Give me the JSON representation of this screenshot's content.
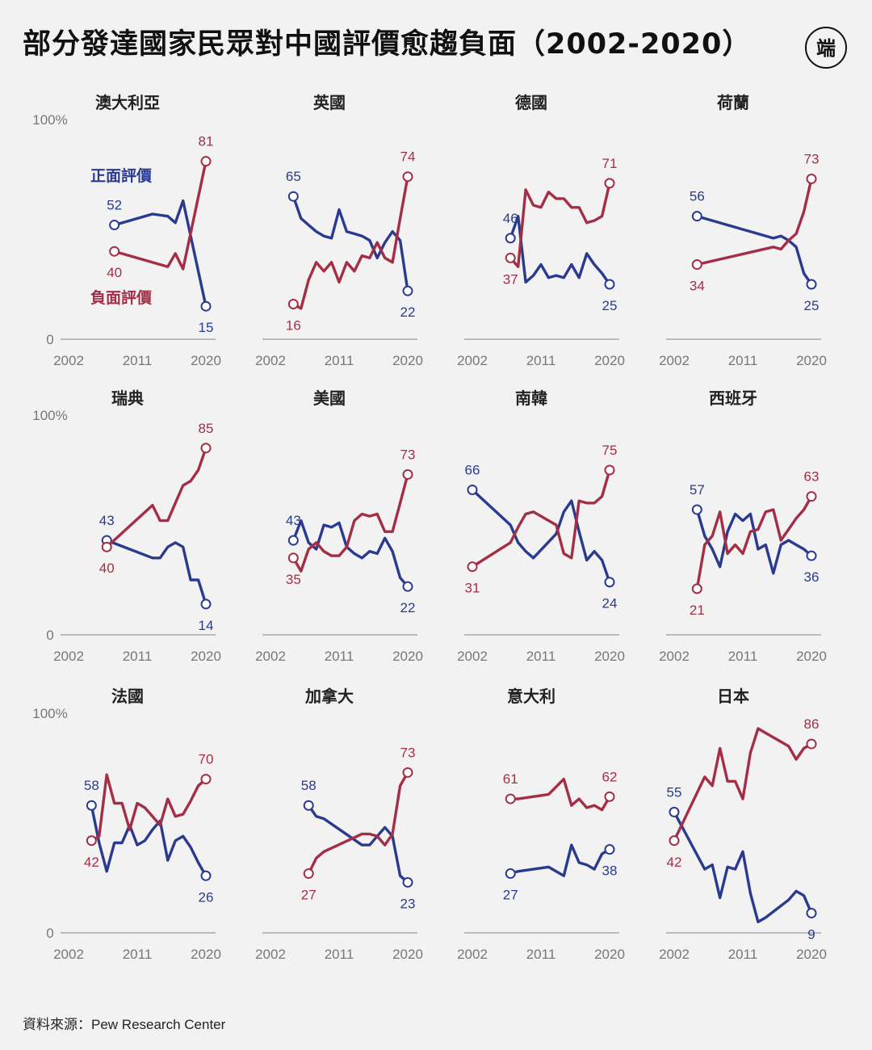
{
  "title": "部分發達國家民眾對中國評價愈趨負面（2002-2020）",
  "source": "資料來源：Pew Research Center",
  "logo_text": "端",
  "colors": {
    "positive": "#2a3b8f",
    "negative": "#a32e45",
    "axis": "#999999",
    "tick": "#777777",
    "background": "#f2f2f2"
  },
  "chart_data": {
    "type": "line",
    "x_ticks": [
      2002,
      2011,
      2020
    ],
    "y_ticks": [
      "100%",
      "0"
    ],
    "xlim": [
      2002,
      2020
    ],
    "ylim": [
      0,
      100
    ],
    "series_labels": {
      "positive": "正面評價",
      "negative": "負面評價"
    },
    "panels": [
      {
        "title": "澳大利亞",
        "positive": {
          "x": [
            2008,
            2013,
            2015,
            2016,
            2017,
            2020
          ],
          "y": [
            52,
            57,
            56,
            53,
            63,
            15
          ]
        },
        "negative": {
          "x": [
            2008,
            2015,
            2016,
            2017,
            2020
          ],
          "y": [
            40,
            33,
            39,
            32,
            81
          ]
        },
        "labels": {
          "pos_start": "52",
          "neg_start": "40",
          "pos_end": "15",
          "neg_end": "81"
        }
      },
      {
        "title": "英國",
        "positive": {
          "x": [
            2005,
            2006,
            2007,
            2008,
            2009,
            2010,
            2011,
            2012,
            2013,
            2014,
            2015,
            2016,
            2017,
            2018,
            2019,
            2020
          ],
          "y": [
            65,
            55,
            52,
            49,
            47,
            46,
            59,
            49,
            48,
            47,
            45,
            37,
            44,
            49,
            45,
            22
          ]
        },
        "negative": {
          "x": [
            2005,
            2006,
            2007,
            2008,
            2009,
            2010,
            2011,
            2012,
            2013,
            2014,
            2015,
            2016,
            2017,
            2018,
            2019,
            2020
          ],
          "y": [
            16,
            14,
            27,
            35,
            31,
            35,
            26,
            35,
            31,
            38,
            37,
            44,
            37,
            35,
            55,
            74
          ]
        },
        "labels": {
          "pos_start": "65",
          "neg_start": "16",
          "pos_end": "22",
          "neg_end": "74"
        }
      },
      {
        "title": "德國",
        "positive": {
          "x": [
            2007,
            2008,
            2009,
            2010,
            2011,
            2012,
            2013,
            2014,
            2015,
            2016,
            2017,
            2018,
            2019,
            2020
          ],
          "y": [
            46,
            56,
            26,
            29,
            34,
            28,
            29,
            28,
            34,
            28,
            39,
            34,
            30,
            25
          ]
        },
        "negative": {
          "x": [
            2007,
            2008,
            2009,
            2010,
            2011,
            2012,
            2013,
            2014,
            2015,
            2016,
            2017,
            2018,
            2019,
            2020
          ],
          "y": [
            37,
            33,
            68,
            61,
            60,
            67,
            64,
            64,
            60,
            60,
            53,
            54,
            56,
            71
          ]
        },
        "labels": {
          "pos_start": "46",
          "neg_start": "37",
          "pos_end": "25",
          "neg_end": "71"
        }
      },
      {
        "title": "荷蘭",
        "positive": {
          "x": [
            2005,
            2015,
            2016,
            2017,
            2018,
            2019,
            2020
          ],
          "y": [
            56,
            46,
            47,
            45,
            42,
            30,
            25
          ]
        },
        "negative": {
          "x": [
            2005,
            2015,
            2016,
            2017,
            2018,
            2019,
            2020
          ],
          "y": [
            34,
            42,
            41,
            45,
            48,
            58,
            73
          ]
        },
        "labels": {
          "pos_start": "56",
          "neg_start": "34",
          "pos_end": "25",
          "neg_end": "73"
        }
      },
      {
        "title": "瑞典",
        "positive": {
          "x": [
            2007,
            2013,
            2014,
            2015,
            2016,
            2017,
            2018,
            2019,
            2020
          ],
          "y": [
            43,
            35,
            35,
            40,
            42,
            40,
            25,
            25,
            14
          ]
        },
        "negative": {
          "x": [
            2007,
            2013,
            2014,
            2015,
            2016,
            2017,
            2018,
            2019,
            2020
          ],
          "y": [
            40,
            59,
            52,
            52,
            60,
            68,
            70,
            75,
            85
          ]
        },
        "labels": {
          "pos_start": "43",
          "neg_start": "40",
          "pos_end": "14",
          "neg_end": "85"
        }
      },
      {
        "title": "美國",
        "positive": {
          "x": [
            2005,
            2006,
            2007,
            2008,
            2009,
            2010,
            2011,
            2012,
            2013,
            2014,
            2015,
            2016,
            2017,
            2018,
            2019,
            2020
          ],
          "y": [
            43,
            52,
            42,
            39,
            50,
            49,
            51,
            40,
            37,
            35,
            38,
            37,
            44,
            38,
            26,
            22
          ]
        },
        "negative": {
          "x": [
            2005,
            2006,
            2007,
            2008,
            2009,
            2010,
            2011,
            2012,
            2013,
            2014,
            2015,
            2016,
            2017,
            2018,
            2019,
            2020
          ],
          "y": [
            35,
            29,
            39,
            42,
            38,
            36,
            36,
            40,
            52,
            55,
            54,
            55,
            47,
            47,
            60,
            73
          ]
        },
        "labels": {
          "pos_start": "43",
          "neg_start": "35",
          "pos_end": "22",
          "neg_end": "73"
        }
      },
      {
        "title": "南韓",
        "positive": {
          "x": [
            2002,
            2007,
            2008,
            2009,
            2010,
            2013,
            2014,
            2015,
            2016,
            2017,
            2018,
            2019,
            2020
          ],
          "y": [
            66,
            50,
            42,
            38,
            35,
            46,
            56,
            61,
            47,
            34,
            38,
            34,
            24
          ]
        },
        "negative": {
          "x": [
            2002,
            2007,
            2008,
            2009,
            2010,
            2013,
            2014,
            2015,
            2016,
            2017,
            2018,
            2019,
            2020
          ],
          "y": [
            31,
            42,
            49,
            55,
            56,
            50,
            37,
            35,
            61,
            60,
            60,
            63,
            75
          ]
        },
        "labels": {
          "pos_start": "66",
          "neg_start": "31",
          "pos_end": "24",
          "neg_end": "75"
        }
      },
      {
        "title": "西班牙",
        "positive": {
          "x": [
            2005,
            2006,
            2007,
            2008,
            2009,
            2010,
            2011,
            2012,
            2013,
            2014,
            2015,
            2016,
            2017,
            2018,
            2019,
            2020
          ],
          "y": [
            57,
            45,
            39,
            31,
            47,
            55,
            52,
            55,
            39,
            41,
            28,
            41,
            43,
            41,
            39,
            36
          ]
        },
        "negative": {
          "x": [
            2005,
            2006,
            2007,
            2008,
            2009,
            2010,
            2011,
            2012,
            2013,
            2014,
            2015,
            2016,
            2017,
            2018,
            2019,
            2020
          ],
          "y": [
            21,
            41,
            45,
            56,
            37,
            41,
            37,
            47,
            48,
            56,
            57,
            43,
            48,
            53,
            57,
            63
          ]
        },
        "labels": {
          "pos_start": "57",
          "neg_start": "21",
          "pos_end": "36",
          "neg_end": "63"
        }
      },
      {
        "title": "法國",
        "positive": {
          "x": [
            2005,
            2006,
            2007,
            2008,
            2009,
            2010,
            2011,
            2012,
            2013,
            2014,
            2015,
            2016,
            2017,
            2018,
            2019,
            2020
          ],
          "y": [
            58,
            41,
            28,
            41,
            41,
            49,
            40,
            42,
            47,
            51,
            33,
            42,
            44,
            39,
            32,
            26
          ]
        },
        "negative": {
          "x": [
            2005,
            2006,
            2007,
            2008,
            2009,
            2010,
            2011,
            2012,
            2013,
            2014,
            2015,
            2016,
            2017,
            2018,
            2019,
            2020
          ],
          "y": [
            42,
            44,
            72,
            59,
            59,
            47,
            59,
            57,
            53,
            49,
            61,
            53,
            54,
            60,
            67,
            70
          ]
        },
        "labels": {
          "pos_start": "58",
          "neg_start": "42",
          "pos_end": "26",
          "neg_end": "70"
        }
      },
      {
        "title": "加拿大",
        "positive": {
          "x": [
            2007,
            2008,
            2009,
            2014,
            2015,
            2016,
            2017,
            2018,
            2019,
            2020
          ],
          "y": [
            58,
            53,
            52,
            40,
            40,
            44,
            48,
            44,
            26,
            23
          ]
        },
        "negative": {
          "x": [
            2007,
            2008,
            2009,
            2014,
            2015,
            2016,
            2017,
            2018,
            2019,
            2020
          ],
          "y": [
            27,
            34,
            37,
            45,
            45,
            44,
            40,
            45,
            67,
            73
          ]
        },
        "labels": {
          "pos_start": "58",
          "neg_start": "27",
          "pos_end": "23",
          "neg_end": "73"
        }
      },
      {
        "title": "意大利",
        "positive": {
          "x": [
            2007,
            2008,
            2012,
            2014,
            2015,
            2016,
            2017,
            2018,
            2019,
            2020
          ],
          "y": [
            27,
            28,
            30,
            26,
            40,
            32,
            31,
            29,
            36,
            38
          ]
        },
        "negative": {
          "x": [
            2007,
            2008,
            2012,
            2014,
            2015,
            2016,
            2017,
            2018,
            2019,
            2020
          ],
          "y": [
            61,
            61,
            63,
            70,
            58,
            61,
            57,
            58,
            56,
            62
          ]
        },
        "labels": {
          "pos_start": "27",
          "neg_start": "61",
          "pos_end": "38",
          "neg_end": "62"
        }
      },
      {
        "title": "日本",
        "positive": {
          "x": [
            2002,
            2006,
            2007,
            2008,
            2009,
            2010,
            2011,
            2012,
            2013,
            2014,
            2017,
            2018,
            2019,
            2020
          ],
          "y": [
            55,
            29,
            31,
            16,
            30,
            29,
            37,
            18,
            5,
            7,
            15,
            19,
            17,
            9
          ]
        },
        "negative": {
          "x": [
            2002,
            2006,
            2007,
            2008,
            2009,
            2010,
            2011,
            2012,
            2013,
            2014,
            2017,
            2018,
            2019,
            2020
          ],
          "y": [
            42,
            71,
            67,
            84,
            69,
            69,
            61,
            82,
            93,
            91,
            85,
            79,
            84,
            86
          ]
        },
        "labels": {
          "pos_start": "55",
          "neg_start": "42",
          "pos_end": "9",
          "neg_end": "86"
        }
      }
    ]
  }
}
